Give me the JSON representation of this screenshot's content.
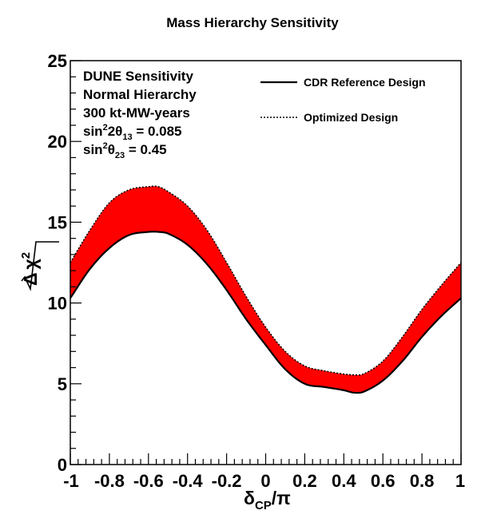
{
  "chart_data": {
    "type": "area",
    "title": "Mass Hierarchy Sensitivity",
    "xlabel": {
      "main": "δ",
      "sub": "CP",
      "suffix": "/π"
    },
    "ylabel": {
      "delta": "Δ",
      "chi": "χ",
      "power": "2"
    },
    "xlim": [
      -1,
      1
    ],
    "ylim": [
      0,
      25
    ],
    "x_ticks": [
      "-1",
      "-0.8",
      "-0.6",
      "-0.4",
      "-0.2",
      "0",
      "0.2",
      "0.4",
      "0.6",
      "0.8",
      "1"
    ],
    "y_ticks": [
      "0",
      "5",
      "10",
      "15",
      "20",
      "25"
    ],
    "grid": false,
    "legend_position": "top-right",
    "info_lines": [
      {
        "text": "DUNE Sensitivity"
      },
      {
        "text": "Normal Hierarchy"
      },
      {
        "text": "300 kt-MW-years"
      },
      {
        "parts": [
          {
            "t": "sin"
          },
          {
            "t": "2",
            "s": "sup"
          },
          {
            "t": "2θ"
          },
          {
            "t": "13",
            "s": "sub"
          },
          {
            "t": " = 0.085"
          }
        ]
      },
      {
        "parts": [
          {
            "t": "sin"
          },
          {
            "t": "2",
            "s": "sup"
          },
          {
            "t": "θ"
          },
          {
            "t": "23",
            "s": "sub"
          },
          {
            "t": " = 0.45"
          }
        ]
      }
    ],
    "band_color": "#ff0000",
    "series": [
      {
        "name": "CDR Reference Design",
        "line_style": "solid",
        "x": [
          -1.0,
          -0.9,
          -0.8,
          -0.7,
          -0.6,
          -0.55,
          -0.5,
          -0.4,
          -0.3,
          -0.2,
          -0.1,
          0.0,
          0.1,
          0.2,
          0.3,
          0.4,
          0.45,
          0.5,
          0.6,
          0.7,
          0.8,
          0.9,
          1.0
        ],
        "y": [
          10.3,
          12.1,
          13.4,
          14.2,
          14.4,
          14.4,
          14.3,
          13.6,
          12.4,
          10.8,
          9.0,
          7.4,
          5.9,
          5.0,
          4.8,
          4.6,
          4.45,
          4.5,
          5.2,
          6.4,
          7.9,
          9.2,
          10.3
        ]
      },
      {
        "name": "Optimized Design",
        "line_style": "dotted",
        "x": [
          -1.0,
          -0.9,
          -0.8,
          -0.7,
          -0.6,
          -0.55,
          -0.5,
          -0.4,
          -0.3,
          -0.2,
          -0.1,
          0.0,
          0.1,
          0.2,
          0.3,
          0.4,
          0.45,
          0.5,
          0.6,
          0.7,
          0.8,
          0.9,
          1.0
        ],
        "y": [
          12.5,
          14.5,
          16.2,
          17.0,
          17.2,
          17.2,
          16.9,
          16.0,
          14.5,
          12.5,
          10.4,
          8.5,
          7.0,
          6.1,
          5.8,
          5.6,
          5.55,
          5.6,
          6.4,
          7.9,
          9.6,
          11.1,
          12.5
        ]
      }
    ]
  }
}
